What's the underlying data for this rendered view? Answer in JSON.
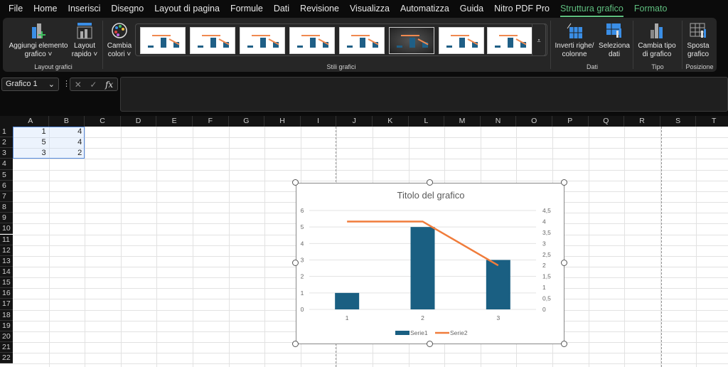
{
  "menu": [
    "File",
    "Home",
    "Inserisci",
    "Disegno",
    "Layout di pagina",
    "Formule",
    "Dati",
    "Revisione",
    "Visualizza",
    "Automatizza",
    "Guida",
    "Nitro PDF Pro",
    "Struttura grafico",
    "Formato"
  ],
  "ribbon": {
    "add_element": "Aggiungi elemento",
    "add_element2": "grafico ˅",
    "quick_layout": "Layout",
    "quick_layout2": "rapido ˅",
    "change_colors": "Cambia",
    "change_colors2": "colori ˅",
    "group_layout": "Layout grafici",
    "group_styles": "Stili grafici",
    "switch": "Inverti righe/",
    "switch2": "colonne",
    "select_data": "Seleziona",
    "select_data2": "dati",
    "group_data": "Dati",
    "change_type": "Cambia tipo",
    "change_type2": "di grafico",
    "group_type": "Tipo",
    "move": "Sposta",
    "move2": "grafico",
    "group_position": "Posizione"
  },
  "formula_bar": {
    "name_box": "Grafico 1",
    "fx": "fx",
    "value": ""
  },
  "columns": [
    "A",
    "B",
    "C",
    "D",
    "E",
    "F",
    "G",
    "H",
    "I",
    "J",
    "K",
    "L",
    "M",
    "N",
    "O",
    "P",
    "Q",
    "R",
    "S",
    "T"
  ],
  "rows": [
    "1",
    "2",
    "3",
    "4",
    "5",
    "6",
    "7",
    "8",
    "9",
    "10",
    "11",
    "12",
    "13",
    "14",
    "15",
    "16",
    "17",
    "18",
    "19",
    "20",
    "21",
    "22"
  ],
  "cells": [
    [
      "1",
      "4"
    ],
    [
      "5",
      "4"
    ],
    [
      "3",
      "2"
    ]
  ],
  "colors": {
    "series1": "#1a5f82",
    "series2": "#f07c3b",
    "accent": "#5fbf7f"
  },
  "chart_data": {
    "type": "bar+line",
    "title": "Titolo del grafico",
    "categories": [
      "1",
      "2",
      "3"
    ],
    "series": [
      {
        "name": "Serie1",
        "type": "bar",
        "axis": "left",
        "values": [
          1,
          5,
          3
        ]
      },
      {
        "name": "Serie2",
        "type": "line",
        "axis": "right",
        "values": [
          4,
          4,
          2
        ]
      }
    ],
    "ylim": [
      0,
      6
    ],
    "yticks": [
      "0",
      "1",
      "2",
      "3",
      "4",
      "5",
      "6"
    ],
    "y2lim": [
      0,
      4.5
    ],
    "y2ticks": [
      "0",
      "0,5",
      "1",
      "1,5",
      "2",
      "2,5",
      "3",
      "3,5",
      "4",
      "4,5"
    ],
    "grid": true,
    "legend": "bottom"
  }
}
